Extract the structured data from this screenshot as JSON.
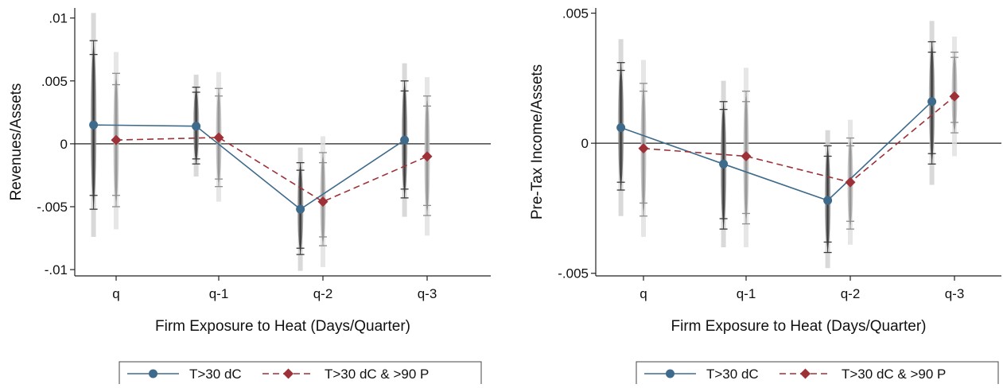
{
  "chart_data": [
    {
      "type": "line",
      "categories": [
        "q",
        "q-1",
        "q-2",
        "q-3"
      ],
      "xlabel": "Firm Exposure to Heat (Days/Quarter)",
      "ylabel": "Revenues/Assets",
      "ylim": [
        -0.0105,
        0.0108
      ],
      "yticks": [
        {
          "value": 0.01,
          "label": ".01"
        },
        {
          "value": 0.005,
          "label": ".005"
        },
        {
          "value": 0,
          "label": "0"
        },
        {
          "value": -0.005,
          "label": "-.005"
        },
        {
          "value": -0.01,
          "label": "-.01"
        }
      ],
      "zero_line": true,
      "legend_position": "bottom",
      "series": [
        {
          "name": "T>30 dC",
          "color": "#3e6b8c",
          "marker": "circle",
          "dash": "solid",
          "offset": -0.22,
          "values": [
            0.0015,
            0.0014,
            -0.0052,
            0.0003
          ],
          "ci": [
            [
              [
                -0.0052,
                0.0082
              ],
              [
                -0.0041,
                0.0071
              ],
              [
                -0.0074,
                0.0104
              ]
            ],
            [
              [
                -0.0016,
                0.0045
              ],
              [
                -0.0012,
                0.0041
              ],
              [
                -0.0026,
                0.0055
              ]
            ],
            [
              [
                -0.0088,
                -0.0015
              ],
              [
                -0.0083,
                -0.0021
              ],
              [
                -0.0101,
                -0.0003
              ]
            ],
            [
              [
                -0.0043,
                0.005
              ],
              [
                -0.0036,
                0.0042
              ],
              [
                -0.0058,
                0.0064
              ]
            ]
          ]
        },
        {
          "name": "T>30 dC & >90 P",
          "color": "#9e3038",
          "marker": "diamond",
          "dash": "dashed",
          "offset": 0.0,
          "values": [
            0.0003,
            0.0005,
            -0.0046,
            -0.001
          ],
          "ci": [
            [
              [
                -0.005,
                0.0056
              ],
              [
                -0.0041,
                0.0047
              ],
              [
                -0.0068,
                0.0073
              ]
            ],
            [
              [
                -0.0034,
                0.0044
              ],
              [
                -0.0028,
                0.0038
              ],
              [
                -0.0046,
                0.0057
              ]
            ],
            [
              [
                -0.0081,
                -0.0007
              ],
              [
                -0.0074,
                -0.0015
              ],
              [
                -0.0098,
                0.0006
              ]
            ],
            [
              [
                -0.0057,
                0.0038
              ],
              [
                -0.0049,
                0.003
              ],
              [
                -0.0073,
                0.0053
              ]
            ]
          ]
        }
      ]
    },
    {
      "type": "line",
      "categories": [
        "q",
        "q-1",
        "q-2",
        "q-3"
      ],
      "xlabel": "Firm Exposure to Heat (Days/Quarter)",
      "ylabel": "Pre-Tax Income/Assets",
      "ylim": [
        -0.0051,
        0.0052
      ],
      "yticks": [
        {
          "value": 0.005,
          "label": ".005"
        },
        {
          "value": 0,
          "label": "0"
        },
        {
          "value": -0.005,
          "label": "-.005"
        }
      ],
      "zero_line": true,
      "legend_position": "bottom",
      "series": [
        {
          "name": "T>30 dC",
          "color": "#3e6b8c",
          "marker": "circle",
          "dash": "solid",
          "offset": -0.22,
          "values": [
            0.0006,
            -0.0008,
            -0.0022,
            0.0016
          ],
          "ci": [
            [
              [
                -0.0018,
                0.0031
              ],
              [
                -0.0015,
                0.0028
              ],
              [
                -0.0028,
                0.004
              ]
            ],
            [
              [
                -0.0033,
                0.0016
              ],
              [
                -0.0029,
                0.0013
              ],
              [
                -0.004,
                0.0024
              ]
            ],
            [
              [
                -0.0042,
                -0.0001
              ],
              [
                -0.0038,
                -0.0005
              ],
              [
                -0.0048,
                0.0005
              ]
            ],
            [
              [
                -0.0008,
                0.0039
              ],
              [
                -0.0004,
                0.0035
              ],
              [
                -0.0016,
                0.0047
              ]
            ]
          ]
        },
        {
          "name": "T>30 dC & >90 P",
          "color": "#9e3038",
          "marker": "diamond",
          "dash": "dashed",
          "offset": 0.0,
          "values": [
            -0.0002,
            -0.0005,
            -0.0015,
            0.0018
          ],
          "ci": [
            [
              [
                -0.0028,
                0.0023
              ],
              [
                -0.0023,
                0.002
              ],
              [
                -0.0036,
                0.0032
              ]
            ],
            [
              [
                -0.0031,
                0.002
              ],
              [
                -0.0027,
                0.0016
              ],
              [
                -0.004,
                0.0029
              ]
            ],
            [
              [
                -0.0033,
                0.0002
              ],
              [
                -0.003,
                -0.0001
              ],
              [
                -0.0039,
                0.0009
              ]
            ],
            [
              [
                0.0004,
                0.0035
              ],
              [
                0.0008,
                0.0033
              ],
              [
                -0.0005,
                0.0041
              ]
            ]
          ]
        }
      ]
    }
  ]
}
